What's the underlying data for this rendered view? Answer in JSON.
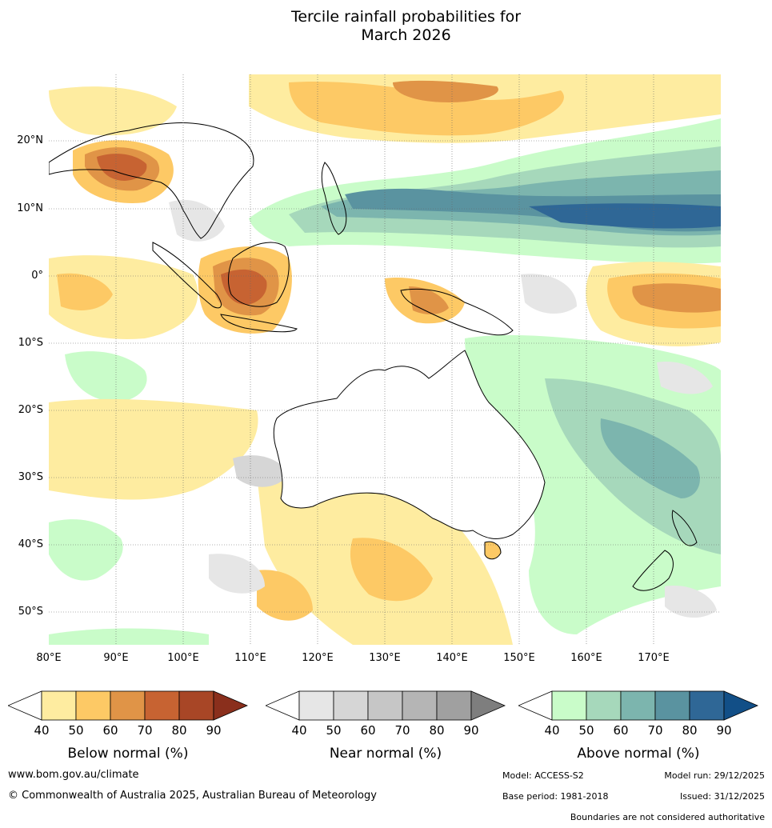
{
  "title_line1": "Tercile rainfall probabilities for",
  "title_line2": "March 2026",
  "lat_labels": [
    "20°N",
    "10°N",
    "0°",
    "10°S",
    "20°S",
    "30°S",
    "40°S",
    "50°S"
  ],
  "lon_labels": [
    "80°E",
    "90°E",
    "100°E",
    "110°E",
    "120°E",
    "130°E",
    "140°E",
    "150°E",
    "160°E",
    "170°E"
  ],
  "colorbars": [
    {
      "name": "below",
      "label": "Below normal (%)",
      "ticks": [
        "40",
        "50",
        "60",
        "70",
        "80",
        "90"
      ],
      "colors": [
        "#ffffff",
        "#feeca0",
        "#fdc965",
        "#e09447",
        "#c76332",
        "#a84626",
        "#8a2f1c"
      ]
    },
    {
      "name": "near",
      "label": "Near normal (%)",
      "ticks": [
        "40",
        "50",
        "60",
        "70",
        "80",
        "90"
      ],
      "colors": [
        "#ffffff",
        "#e6e6e6",
        "#d6d6d6",
        "#c6c6c6",
        "#b5b5b5",
        "#a0a0a0",
        "#7e7e7e"
      ]
    },
    {
      "name": "above",
      "label": "Above normal (%)",
      "ticks": [
        "40",
        "50",
        "60",
        "70",
        "80",
        "90"
      ],
      "colors": [
        "#ffffff",
        "#c9fcc9",
        "#a6d8bb",
        "#7cb5ae",
        "#5a93a0",
        "#2f6796",
        "#124f87"
      ]
    }
  ],
  "footer": {
    "url": "www.bom.gov.au/climate",
    "copyright": "© Commonwealth of Australia 2025, Australian Bureau of Meteorology",
    "model": "Model: ACCESS-S2",
    "model_run": "Model run: 29/12/2025",
    "base_period": "Base period: 1981-2018",
    "issued": "Issued: 31/12/2025",
    "boundaries": "Boundaries are not considered authoritative"
  }
}
